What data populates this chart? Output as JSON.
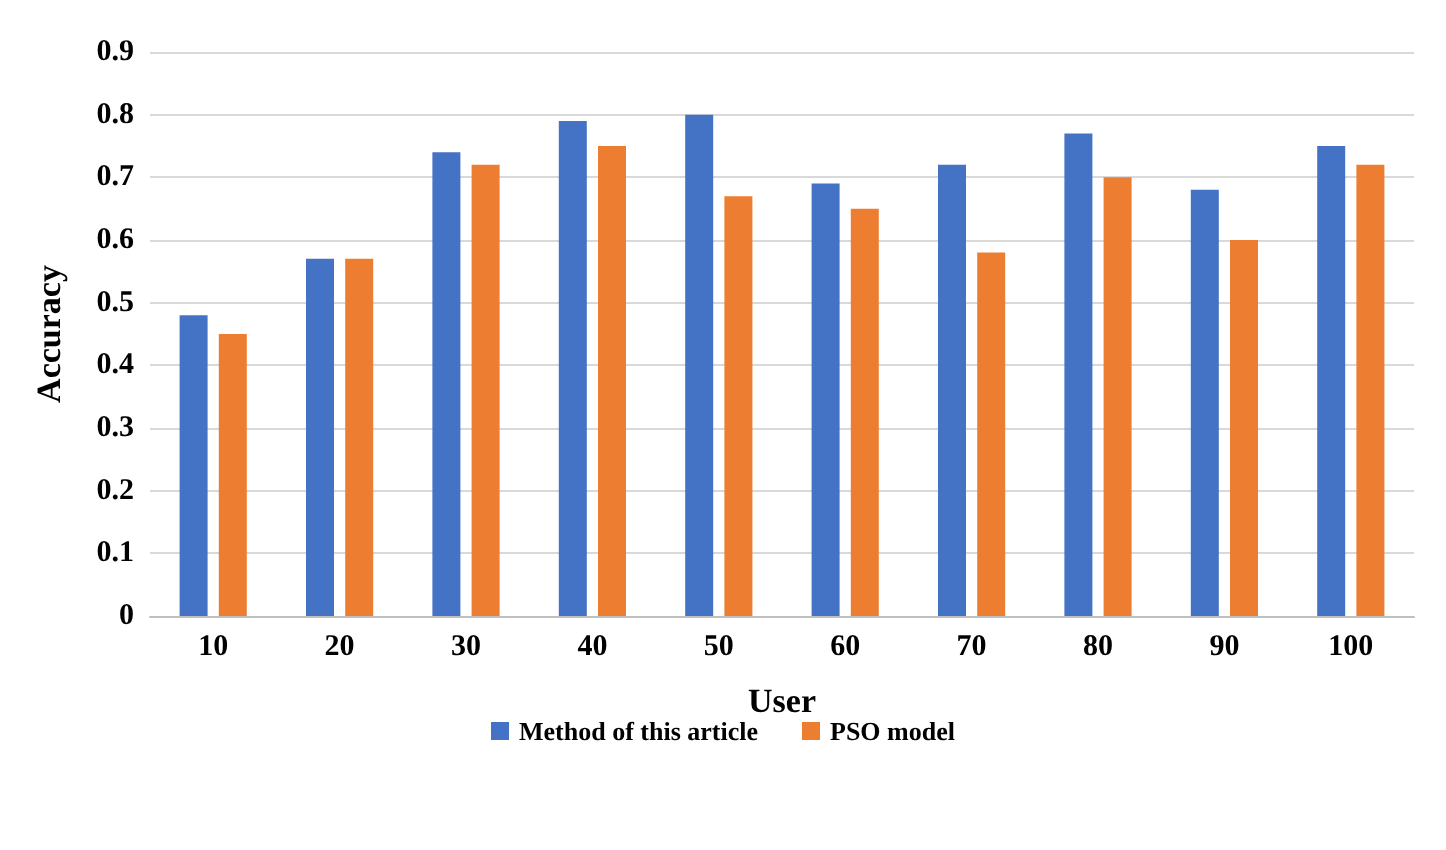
{
  "chart_data": {
    "type": "bar",
    "xlabel": "User",
    "ylabel": "Accuracy",
    "categories": [
      "10",
      "20",
      "30",
      "40",
      "50",
      "60",
      "70",
      "80",
      "90",
      "100"
    ],
    "series": [
      {
        "name": "Method of this article",
        "color": "#4472c4",
        "values": [
          0.48,
          0.57,
          0.74,
          0.79,
          0.8,
          0.69,
          0.72,
          0.77,
          0.68,
          0.75
        ]
      },
      {
        "name": "PSO model",
        "color": "#ed7d31",
        "values": [
          0.45,
          0.57,
          0.72,
          0.75,
          0.67,
          0.65,
          0.58,
          0.7,
          0.6,
          0.72
        ]
      }
    ],
    "ylim": [
      0,
      0.9
    ],
    "yticks": [
      0,
      0.1,
      0.2,
      0.3,
      0.4,
      0.5,
      0.6,
      0.7,
      0.8,
      0.9
    ],
    "grid": "y",
    "legend": "bottom"
  }
}
